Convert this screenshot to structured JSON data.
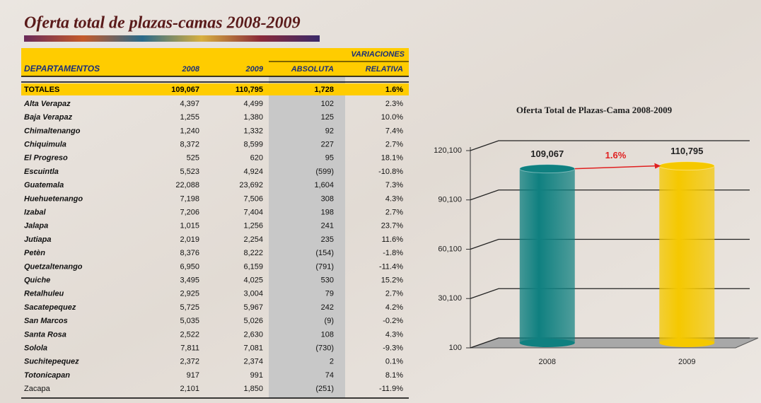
{
  "table": {
    "title": "Oferta total de plazas-camas 2008-2009",
    "group_header": "VARIACIONES",
    "columns": [
      "DEPARTAMENTOS",
      "2008",
      "2009",
      "ABSOLUTA",
      "RELATIVA"
    ],
    "totals": [
      "TOTALES",
      "109,067",
      "110,795",
      "1,728",
      "1.6%"
    ],
    "rows": [
      [
        "Alta Verapaz",
        "4,397",
        "4,499",
        "102",
        "2.3%"
      ],
      [
        "Baja Verapaz",
        "1,255",
        "1,380",
        "125",
        "10.0%"
      ],
      [
        "Chimaltenango",
        "1,240",
        "1,332",
        "92",
        "7.4%"
      ],
      [
        "Chiquimula",
        "8,372",
        "8,599",
        "227",
        "2.7%"
      ],
      [
        "El Progreso",
        "525",
        "620",
        "95",
        "18.1%"
      ],
      [
        "Escuintla",
        "5,523",
        "4,924",
        "(599)",
        "-10.8%"
      ],
      [
        "Guatemala",
        "22,088",
        "23,692",
        "1,604",
        "7.3%"
      ],
      [
        "Huehuetenango",
        "7,198",
        "7,506",
        "308",
        "4.3%"
      ],
      [
        "Izabal",
        "7,206",
        "7,404",
        "198",
        "2.7%"
      ],
      [
        "Jalapa",
        "1,015",
        "1,256",
        "241",
        "23.7%"
      ],
      [
        "Jutiapa",
        "2,019",
        "2,254",
        "235",
        "11.6%"
      ],
      [
        "Petèn",
        "8,376",
        "8,222",
        "(154)",
        "-1.8%"
      ],
      [
        "Quetzaltenango",
        "6,950",
        "6,159",
        "(791)",
        "-11.4%"
      ],
      [
        "Quiche",
        "3,495",
        "4,025",
        "530",
        "15.2%"
      ],
      [
        "Retalhuleu",
        "2,925",
        "3,004",
        "79",
        "2.7%"
      ],
      [
        "Sacatepequez",
        "5,725",
        "5,967",
        "242",
        "4.2%"
      ],
      [
        "San Marcos",
        "5,035",
        "5,026",
        "(9)",
        "-0.2%"
      ],
      [
        "Santa Rosa",
        "2,522",
        "2,630",
        "108",
        "4.3%"
      ],
      [
        "Solola",
        "7,811",
        "7,081",
        "(730)",
        "-9.3%"
      ],
      [
        "Suchitepequez",
        "2,372",
        "2,374",
        "2",
        "0.1%"
      ],
      [
        "Totonicapan",
        "917",
        "991",
        "74",
        "8.1%"
      ],
      [
        "Zacapa",
        "2,101",
        "1,850",
        "(251)",
        "-11.9%"
      ]
    ]
  },
  "chart_data": {
    "type": "bar",
    "title": "Oferta Total de Plazas-Cama 2008-2009",
    "categories": [
      "2008",
      "2009"
    ],
    "values": [
      109067,
      110795
    ],
    "value_labels": [
      "109,067",
      "110,795"
    ],
    "colors": [
      "#0f8080",
      "#f5c800"
    ],
    "annotation": "1.6%",
    "ylim": [
      100,
      120100
    ],
    "yticks": [
      100,
      {
        "value": 30100,
        "label": "30,100"
      },
      {
        "value": 60100,
        "label": "60,100"
      },
      {
        "value": 90100,
        "label": "90,100"
      },
      {
        "value": 120100,
        "label": "120,100"
      }
    ],
    "grid": true
  }
}
